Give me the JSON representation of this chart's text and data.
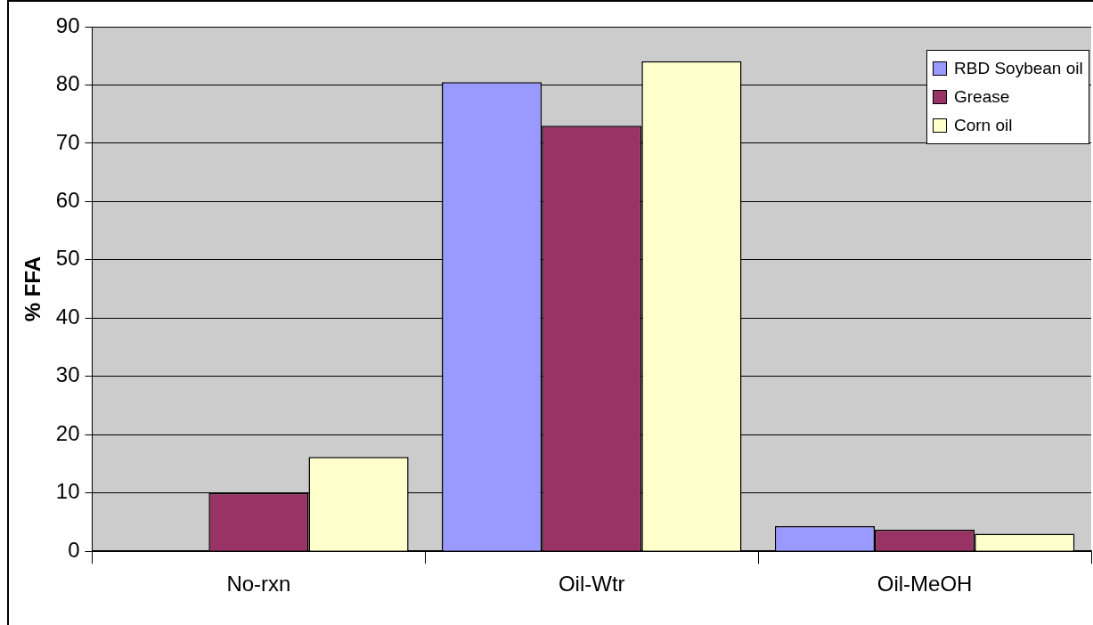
{
  "chart_data": {
    "type": "bar",
    "ylabel": "% FFA",
    "categories": [
      "No-rxn",
      "Oil-Wtr",
      "Oil-MeOH"
    ],
    "series": [
      {
        "name": "RBD Soybean oil",
        "color": "#9999ff",
        "values": [
          0,
          80.5,
          4.3
        ]
      },
      {
        "name": "Grease",
        "color": "#993366",
        "values": [
          10.0,
          73.0,
          3.7
        ]
      },
      {
        "name": "Corn oil",
        "color": "#ffffcc",
        "values": [
          16.2,
          84.1,
          3.0
        ]
      }
    ],
    "ylim": [
      0,
      90
    ],
    "yticks": [
      0,
      10,
      20,
      30,
      40,
      50,
      60,
      70,
      80,
      90
    ],
    "grid": "y",
    "legend": "top right"
  }
}
